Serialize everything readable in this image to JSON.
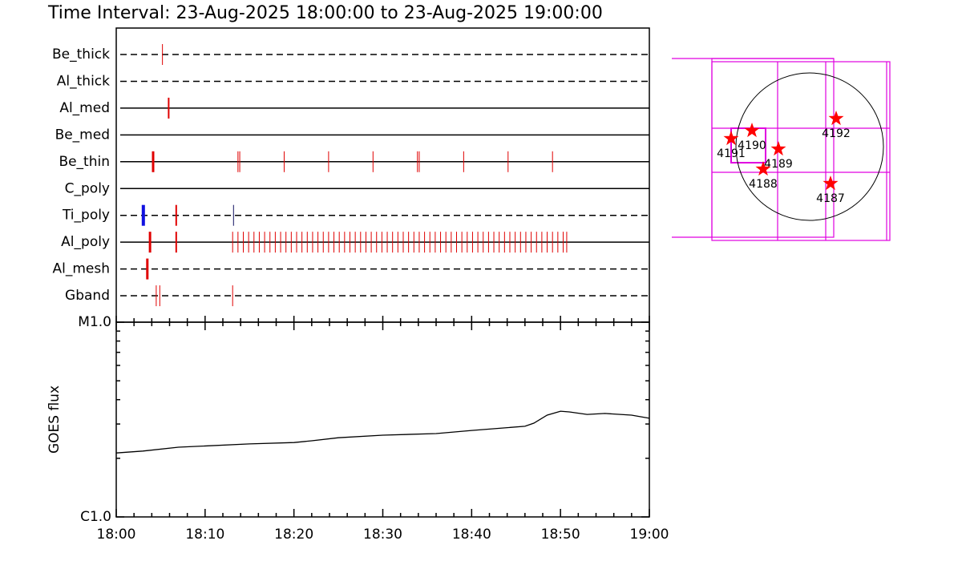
{
  "title": "Time Interval: 23-Aug-2025 18:00:00 to 23-Aug-2025 19:00:00",
  "chart_data": [
    {
      "type": "event",
      "xlim": [
        0,
        60
      ],
      "rows": [
        {
          "name": "Be_thick",
          "line": "dashed",
          "series": [
            {
              "color": "#e00000",
              "width": 1,
              "values": [
                5.2
              ]
            }
          ]
        },
        {
          "name": "Al_thick",
          "line": "dashed",
          "series": []
        },
        {
          "name": "Al_med",
          "line": "solid",
          "series": [
            {
              "color": "#e00000",
              "width": 2,
              "values": [
                5.9
              ]
            }
          ]
        },
        {
          "name": "Be_med",
          "line": "solid",
          "series": []
        },
        {
          "name": "Be_thin",
          "line": "solid",
          "series": [
            {
              "color": "#e00000",
              "width": 3,
              "values": [
                4.15
              ]
            },
            {
              "color": "#e00000",
              "width": 1,
              "values": [
                13.7,
                13.9,
                18.9,
                23.9,
                28.9,
                33.9,
                34.1,
                39.1,
                44.1,
                49.1
              ]
            }
          ]
        },
        {
          "name": "C_poly",
          "line": "solid",
          "series": []
        },
        {
          "name": "Ti_poly",
          "line": "dashed",
          "series": [
            {
              "color": "#1010e0",
              "width": 4,
              "values": [
                3.05
              ]
            },
            {
              "color": "#e00000",
              "width": 2,
              "values": [
                6.75
              ]
            },
            {
              "color": "#101060",
              "width": 1,
              "values": [
                13.2
              ]
            }
          ]
        },
        {
          "name": "Al_poly",
          "line": "solid",
          "series": [
            {
              "color": "#e00000",
              "width": 3,
              "values": [
                3.8
              ]
            },
            {
              "color": "#e00000",
              "width": 2,
              "values": [
                6.75
              ]
            },
            {
              "color": "#e00000",
              "width": 1,
              "values": [
                13.1,
                13.7,
                14.3,
                14.9,
                15.5,
                16.1,
                16.7,
                17.3,
                17.9,
                18.5,
                19.1,
                19.7,
                20.3,
                20.9,
                21.5,
                22.1,
                22.7,
                23.3,
                23.9,
                24.5,
                25.1,
                25.7,
                26.3,
                26.9,
                27.5,
                28.1,
                28.7,
                29.3,
                29.9,
                30.5,
                31.1,
                31.7,
                32.3,
                32.9,
                33.5,
                34.1,
                34.7,
                35.3,
                35.9,
                36.5,
                37.1,
                37.7,
                38.3,
                38.9,
                39.5,
                40.1,
                40.7,
                41.3,
                41.9,
                42.5,
                43.1,
                43.7,
                44.3,
                44.9,
                45.5,
                46.1,
                46.7,
                47.3,
                47.9,
                48.5,
                49.1,
                49.7,
                50.3,
                50.7
              ]
            }
          ]
        },
        {
          "name": "Al_mesh",
          "line": "dashed",
          "series": [
            {
              "color": "#e00000",
              "width": 3,
              "values": [
                3.5
              ]
            }
          ]
        },
        {
          "name": "Gband",
          "line": "dashed",
          "series": [
            {
              "color": "#e00000",
              "width": 1,
              "values": [
                4.5,
                4.9,
                13.1
              ]
            }
          ]
        }
      ]
    },
    {
      "type": "line",
      "ylabel": "GOES flux",
      "log_y": true,
      "color": "#000000",
      "xlim": [
        0,
        60
      ],
      "xticks": [
        {
          "value": 0,
          "label": "18:00"
        },
        {
          "value": 10,
          "label": "18:10"
        },
        {
          "value": 20,
          "label": "18:20"
        },
        {
          "value": 30,
          "label": "18:30"
        },
        {
          "value": 40,
          "label": "18:40"
        },
        {
          "value": 50,
          "label": "18:50"
        },
        {
          "value": 60,
          "label": "19:00"
        }
      ],
      "minor_xticks": [
        2,
        4,
        6,
        8,
        12,
        14,
        16,
        18,
        22,
        24,
        26,
        28,
        32,
        34,
        36,
        38,
        42,
        44,
        46,
        48,
        52,
        54,
        56,
        58
      ],
      "ylim": [
        1e-06,
        1e-05
      ],
      "yticks": [
        {
          "value": 1e-06,
          "label": "C1.0"
        },
        {
          "value": 1e-05,
          "label": "M1.0"
        }
      ],
      "minor_yticks": [
        2e-06,
        3e-06,
        4e-06,
        5e-06,
        6e-06,
        7e-06,
        8e-06,
        9e-06
      ],
      "x": [
        0,
        3,
        7,
        15,
        20,
        22,
        25,
        30,
        36,
        40,
        46,
        47,
        48.5,
        50,
        51,
        53,
        55,
        58,
        60
      ],
      "values": [
        2.13e-06,
        2.18e-06,
        2.28e-06,
        2.37e-06,
        2.41e-06,
        2.46e-06,
        2.55e-06,
        2.63e-06,
        2.68e-06,
        2.78e-06,
        2.92e-06,
        3.03e-06,
        3.33e-06,
        3.49e-06,
        3.46e-06,
        3.36e-06,
        3.4e-06,
        3.33e-06,
        3.21e-06
      ]
    },
    {
      "type": "map",
      "sun_radius": 920,
      "star_color": "#ff0000",
      "points": [
        {
          "label": "4191",
          "x": -980,
          "y": 100
        },
        {
          "label": "4190",
          "x": -720,
          "y": 200
        },
        {
          "label": "4189",
          "x": -390,
          "y": -30
        },
        {
          "label": "4188",
          "x": -580,
          "y": -280
        },
        {
          "label": "4192",
          "x": 330,
          "y": 350
        },
        {
          "label": "4187",
          "x": 260,
          "y": -460
        }
      ]
    }
  ]
}
